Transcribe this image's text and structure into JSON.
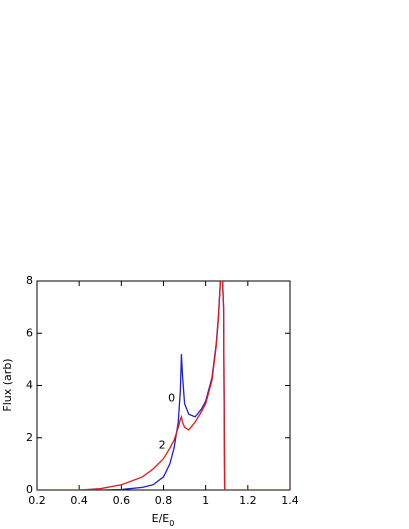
{
  "chart_data": {
    "type": "line",
    "xlabel": "E/E",
    "xlabel_sub": "0",
    "ylabel": "Flux (arb)",
    "x": [
      0.2,
      0.4,
      0.5,
      0.6,
      0.7,
      0.75,
      0.8,
      0.83,
      0.85,
      0.87,
      0.88,
      0.885,
      0.89,
      0.9,
      0.92,
      0.95,
      0.98,
      1.0,
      1.03,
      1.05,
      1.06,
      1.07,
      1.08,
      1.085,
      1.09,
      1.1,
      1.4
    ],
    "series": [
      {
        "name": "0",
        "color": "#1f1fd6",
        "values": [
          0,
          0,
          0,
          0.02,
          0.1,
          0.2,
          0.5,
          1.0,
          1.6,
          2.6,
          3.8,
          5.2,
          4.4,
          3.3,
          2.9,
          2.8,
          3.1,
          3.4,
          4.3,
          5.6,
          6.6,
          8,
          8,
          7,
          0,
          0,
          0
        ],
        "label_at": [
          0.855,
          3.5
        ]
      },
      {
        "name": "2",
        "color": "#e01a1a",
        "values": [
          0,
          0,
          0.05,
          0.2,
          0.5,
          0.8,
          1.2,
          1.6,
          1.9,
          2.4,
          2.7,
          2.8,
          2.6,
          2.4,
          2.3,
          2.6,
          3.0,
          3.3,
          4.2,
          5.5,
          6.5,
          8,
          8,
          7,
          0,
          0,
          0
        ],
        "label_at": [
          0.81,
          1.7
        ]
      }
    ],
    "xlim": [
      0.2,
      1.4
    ],
    "xticks": [
      0.2,
      0.4,
      0.6,
      0.8,
      1.0,
      1.2,
      1.4
    ],
    "ylim": [
      0,
      8
    ],
    "yticks": [
      0,
      2,
      4,
      6,
      8
    ]
  }
}
